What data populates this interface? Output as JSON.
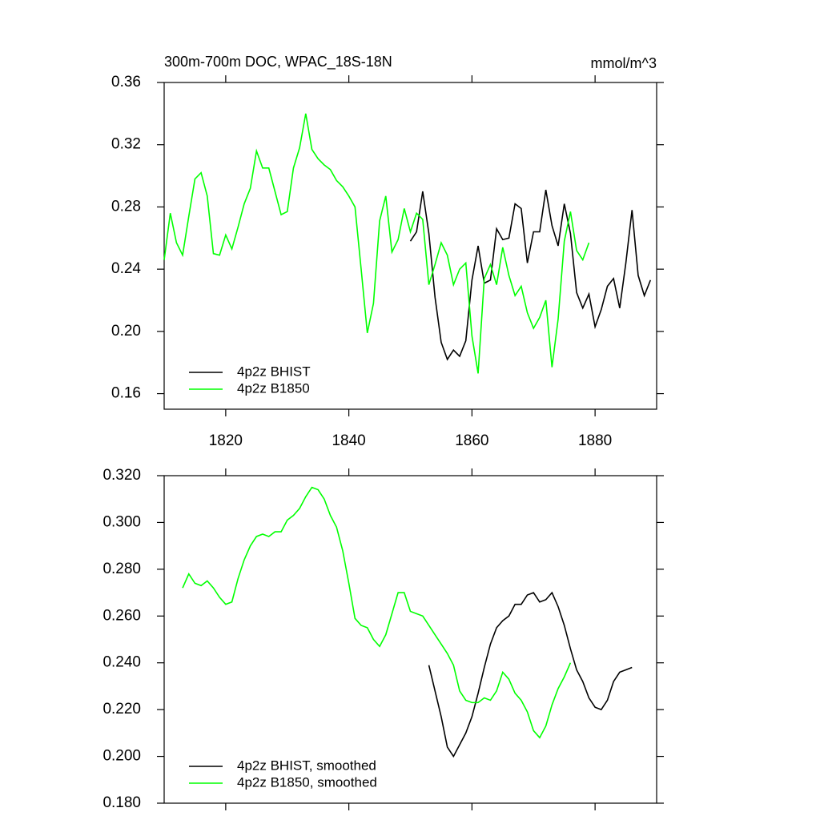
{
  "chart_data": [
    {
      "type": "line",
      "title": "300m-700m DOC, WPAC_18S-18N",
      "units": "mmol/m^3",
      "xlim": [
        1810,
        1890
      ],
      "xticks": [
        1820,
        1840,
        1860,
        1880
      ],
      "ylim": [
        0.15,
        0.36
      ],
      "yticks": [
        0.16,
        {
          "value": 0.2,
          "label": "0.20"
        },
        0.24,
        0.28,
        0.32,
        0.36
      ],
      "legend": "lower left",
      "series": [
        {
          "name": "4p2z BHIST",
          "color": "#000000",
          "x": [
            1850,
            1851,
            1852,
            1853,
            1854,
            1855,
            1856,
            1857,
            1858,
            1859,
            1860,
            1861,
            1862,
            1863,
            1864,
            1865,
            1866,
            1867,
            1868,
            1869,
            1870,
            1871,
            1872,
            1873,
            1874,
            1875,
            1876,
            1877,
            1878,
            1879,
            1880,
            1881,
            1882,
            1883,
            1884,
            1885,
            1886,
            1887,
            1888,
            1889
          ],
          "values": [
            0.258,
            0.264,
            0.29,
            0.263,
            0.222,
            0.193,
            0.182,
            0.188,
            0.184,
            0.194,
            0.233,
            0.255,
            0.231,
            0.233,
            0.266,
            0.259,
            0.26,
            0.282,
            0.279,
            0.244,
            0.264,
            0.264,
            0.291,
            0.268,
            0.255,
            0.282,
            0.263,
            0.225,
            0.215,
            0.224,
            0.203,
            0.214,
            0.229,
            0.234,
            0.215,
            0.244,
            0.278,
            0.236,
            0.223,
            0.233
          ]
        },
        {
          "name": "4p2z B1850",
          "color": "#00ff00",
          "x": [
            1810,
            1811,
            1812,
            1813,
            1814,
            1815,
            1816,
            1817,
            1818,
            1819,
            1820,
            1821,
            1822,
            1823,
            1824,
            1825,
            1826,
            1827,
            1828,
            1829,
            1830,
            1831,
            1832,
            1833,
            1834,
            1835,
            1836,
            1837,
            1838,
            1839,
            1840,
            1841,
            1842,
            1843,
            1844,
            1845,
            1846,
            1847,
            1848,
            1849,
            1850,
            1851,
            1852,
            1853,
            1854,
            1855,
            1856,
            1857,
            1858,
            1859,
            1860,
            1861,
            1862,
            1863,
            1864,
            1865,
            1866,
            1867,
            1868,
            1869,
            1870,
            1871,
            1872,
            1873,
            1874,
            1875,
            1876,
            1877,
            1878,
            1879
          ],
          "values": [
            0.246,
            0.276,
            0.257,
            0.249,
            0.274,
            0.298,
            0.302,
            0.287,
            0.25,
            0.249,
            0.262,
            0.253,
            0.267,
            0.282,
            0.292,
            0.316,
            0.305,
            0.305,
            0.29,
            0.275,
            0.277,
            0.305,
            0.318,
            0.34,
            0.317,
            0.311,
            0.307,
            0.304,
            0.297,
            0.293,
            0.287,
            0.28,
            0.24,
            0.199,
            0.218,
            0.271,
            0.287,
            0.251,
            0.259,
            0.279,
            0.264,
            0.276,
            0.272,
            0.23,
            0.243,
            0.257,
            0.249,
            0.23,
            0.24,
            0.244,
            0.197,
            0.173,
            0.234,
            0.243,
            0.23,
            0.254,
            0.236,
            0.223,
            0.229,
            0.212,
            0.202,
            0.209,
            0.22,
            0.177,
            0.208,
            0.258,
            0.277,
            0.252,
            0.246,
            0.257
          ]
        }
      ]
    },
    {
      "type": "line",
      "xlim": [
        1810,
        1890
      ],
      "ylim": [
        0.18,
        0.32
      ],
      "yticks": [
        {
          "value": 0.18,
          "label": "0.180"
        },
        {
          "value": 0.2,
          "label": "0.200"
        },
        {
          "value": 0.22,
          "label": "0.220"
        },
        {
          "value": 0.24,
          "label": "0.240"
        },
        {
          "value": 0.26,
          "label": "0.260"
        },
        {
          "value": 0.28,
          "label": "0.280"
        },
        {
          "value": 0.3,
          "label": "0.300"
        },
        {
          "value": 0.32,
          "label": "0.320"
        }
      ],
      "legend": "lower left",
      "series": [
        {
          "name": "4p2z BHIST, smoothed",
          "color": "#000000",
          "x": [
            1853,
            1854,
            1855,
            1856,
            1857,
            1858,
            1859,
            1860,
            1861,
            1862,
            1863,
            1864,
            1865,
            1866,
            1867,
            1868,
            1869,
            1870,
            1871,
            1872,
            1873,
            1874,
            1875,
            1876,
            1877,
            1878,
            1879,
            1880,
            1881,
            1882,
            1883,
            1884,
            1885,
            1886
          ],
          "values": [
            0.239,
            0.228,
            0.217,
            0.204,
            0.2,
            0.205,
            0.21,
            0.217,
            0.227,
            0.238,
            0.248,
            0.255,
            0.258,
            0.26,
            0.265,
            0.265,
            0.269,
            0.27,
            0.266,
            0.267,
            0.27,
            0.264,
            0.256,
            0.246,
            0.237,
            0.232,
            0.225,
            0.221,
            0.22,
            0.224,
            0.232,
            0.236,
            0.237,
            0.238
          ]
        },
        {
          "name": "4p2z B1850, smoothed",
          "color": "#00ff00",
          "x": [
            1813,
            1814,
            1815,
            1816,
            1817,
            1818,
            1819,
            1820,
            1821,
            1822,
            1823,
            1824,
            1825,
            1826,
            1827,
            1828,
            1829,
            1830,
            1831,
            1832,
            1833,
            1834,
            1835,
            1836,
            1837,
            1838,
            1839,
            1840,
            1841,
            1842,
            1843,
            1844,
            1845,
            1846,
            1847,
            1848,
            1849,
            1850,
            1851,
            1852,
            1853,
            1854,
            1855,
            1856,
            1857,
            1858,
            1859,
            1860,
            1861,
            1862,
            1863,
            1864,
            1865,
            1866,
            1867,
            1868,
            1869,
            1870,
            1871,
            1872,
            1873,
            1874,
            1875,
            1876
          ],
          "values": [
            0.272,
            0.278,
            0.274,
            0.273,
            0.275,
            0.272,
            0.268,
            0.265,
            0.266,
            0.276,
            0.284,
            0.29,
            0.294,
            0.295,
            0.294,
            0.296,
            0.296,
            0.301,
            0.303,
            0.306,
            0.311,
            0.315,
            0.314,
            0.31,
            0.303,
            0.298,
            0.288,
            0.274,
            0.259,
            0.256,
            0.255,
            0.25,
            0.247,
            0.252,
            0.261,
            0.27,
            0.27,
            0.262,
            0.261,
            0.26,
            0.256,
            0.252,
            0.248,
            0.244,
            0.239,
            0.228,
            0.224,
            0.223,
            0.223,
            0.225,
            0.224,
            0.228,
            0.236,
            0.233,
            0.227,
            0.224,
            0.219,
            0.211,
            0.208,
            0.213,
            0.222,
            0.229,
            0.234,
            0.24
          ]
        }
      ]
    }
  ]
}
